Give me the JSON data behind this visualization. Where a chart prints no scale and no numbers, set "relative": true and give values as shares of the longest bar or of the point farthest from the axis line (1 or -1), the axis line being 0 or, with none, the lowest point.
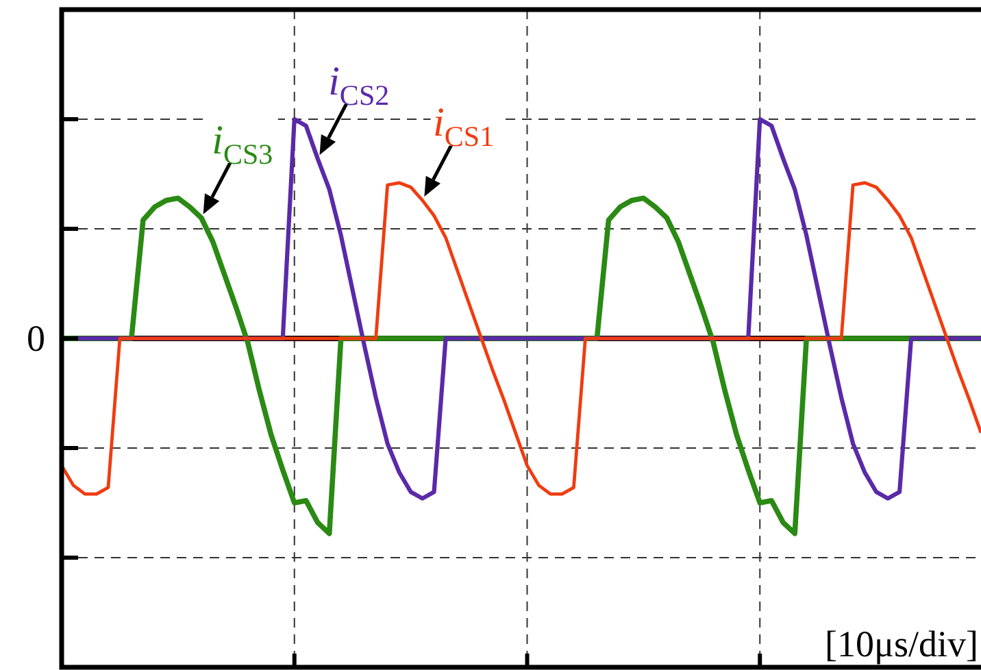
{
  "chart_data": {
    "type": "line",
    "relative": true,
    "grid": true,
    "categories": [
      null,
      null,
      null,
      null,
      null,
      null,
      null,
      null,
      null,
      null,
      null,
      null,
      null,
      null,
      null,
      null,
      null,
      null,
      null,
      null,
      null,
      null,
      null,
      null,
      null,
      null,
      null,
      null,
      null,
      null,
      null,
      null,
      null,
      null,
      null,
      null,
      null,
      null,
      null,
      null,
      null,
      null,
      null,
      null,
      null,
      null,
      null,
      null,
      null,
      null,
      null,
      null,
      null,
      null,
      null,
      null,
      null,
      null,
      null,
      null,
      null,
      null,
      null,
      null,
      null,
      null,
      null,
      null,
      null,
      null,
      null,
      null,
      null,
      null,
      null,
      null,
      null,
      null,
      null,
      null
    ],
    "series": [
      {
        "name": "i$_{CS1}$",
        "color": "#f03c10",
        "values": [
          -0.58,
          -0.67,
          -0.71,
          -0.71,
          -0.68,
          0,
          0,
          0,
          0,
          0,
          0,
          0,
          0,
          0,
          0,
          0,
          0,
          0,
          0,
          0,
          0,
          0,
          0,
          0,
          0,
          0,
          0,
          0,
          0.7,
          0.71,
          0.69,
          0.63,
          0.56,
          0.46,
          0.31,
          0.16,
          0.01,
          -0.14,
          -0.28,
          -0.43,
          -0.58,
          -0.67,
          -0.71,
          -0.71,
          -0.68,
          0,
          0,
          0,
          0,
          0,
          0,
          0,
          0,
          0,
          0,
          0,
          0,
          0,
          0,
          0,
          0,
          0,
          0,
          0,
          0,
          0,
          0,
          0,
          0.7,
          0.71,
          0.69,
          0.63,
          0.56,
          0.46,
          0.31,
          0.16,
          0.01,
          -0.14,
          -0.28,
          -0.43
        ]
      },
      {
        "name": "i$_{CS2}$",
        "color": "#5a2aa8",
        "values": [
          0,
          0,
          0,
          0,
          0,
          0,
          0,
          0,
          0,
          0,
          0,
          0,
          0,
          0,
          0,
          0,
          0,
          0,
          0,
          0,
          1.0,
          0.97,
          0.82,
          0.68,
          0.47,
          0.22,
          -0.03,
          -0.27,
          -0.48,
          -0.61,
          -0.7,
          -0.73,
          -0.7,
          0,
          0,
          0,
          0,
          0,
          0,
          0,
          0,
          0,
          0,
          0,
          0,
          0,
          0,
          0,
          0,
          0,
          0,
          0,
          0,
          0,
          0,
          0,
          0,
          0,
          0,
          0,
          1.0,
          0.97,
          0.82,
          0.68,
          0.47,
          0.22,
          -0.03,
          -0.27,
          -0.48,
          -0.61,
          -0.7,
          -0.73,
          -0.7,
          0,
          0,
          0,
          0,
          0,
          0,
          0
        ]
      },
      {
        "name": "i$_{CS3}$",
        "color": "#2a8a14",
        "values": [
          0,
          0,
          0,
          0,
          0,
          0,
          0,
          0.54,
          0.6,
          0.63,
          0.64,
          0.6,
          0.55,
          0.44,
          0.29,
          0.14,
          -0.02,
          -0.24,
          -0.44,
          -0.6,
          -0.75,
          -0.74,
          -0.84,
          -0.89,
          0,
          0,
          0,
          0,
          0,
          0,
          0,
          0,
          0,
          0,
          0,
          0,
          0,
          0,
          0,
          0,
          0,
          0,
          0,
          0,
          0,
          0,
          0,
          0.54,
          0.6,
          0.63,
          0.64,
          0.6,
          0.55,
          0.44,
          0.29,
          0.14,
          -0.02,
          -0.24,
          -0.44,
          -0.6,
          -0.75,
          -0.74,
          -0.84,
          -0.89,
          0,
          0,
          0,
          0,
          0,
          0,
          0,
          0,
          0,
          0,
          0,
          0,
          0,
          0,
          0,
          0
        ]
      }
    ],
    "annotations": [
      "0",
      "[10μs/div]"
    ]
  }
}
